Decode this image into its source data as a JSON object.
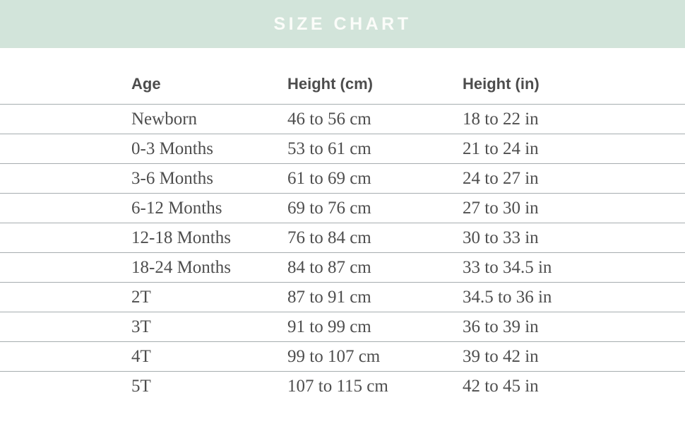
{
  "banner": {
    "title": "SIZE CHART",
    "bg_color": "#d2e4da",
    "text_color": "#fbfcf9"
  },
  "colors": {
    "divider": "#a6adaf",
    "header_text": "#4d4d4d",
    "body_text": "#4e4e4e"
  },
  "chart_data": {
    "type": "table",
    "title": "SIZE CHART",
    "columns": [
      "Age",
      "Height (cm)",
      "Height (in)"
    ],
    "rows": [
      [
        "Newborn",
        "46 to 56 cm",
        "18 to 22 in"
      ],
      [
        "0-3 Months",
        "53 to 61 cm",
        "21 to 24 in"
      ],
      [
        "3-6 Months",
        "61 to 69 cm",
        "24 to 27 in"
      ],
      [
        "6-12 Months",
        "69 to 76 cm",
        "27 to 30 in"
      ],
      [
        "12-18 Months",
        "76 to 84 cm",
        "30 to 33 in"
      ],
      [
        "18-24 Months",
        "84 to 87 cm",
        "33 to 34.5 in"
      ],
      [
        "2T",
        "87 to 91 cm",
        "34.5 to 36 in"
      ],
      [
        "3T",
        "91 to 99 cm",
        "36 to 39 in"
      ],
      [
        "4T",
        "99 to 107 cm",
        "39 to 42 in"
      ],
      [
        "5T",
        "107 to 115 cm",
        "42 to 45 in"
      ]
    ]
  }
}
